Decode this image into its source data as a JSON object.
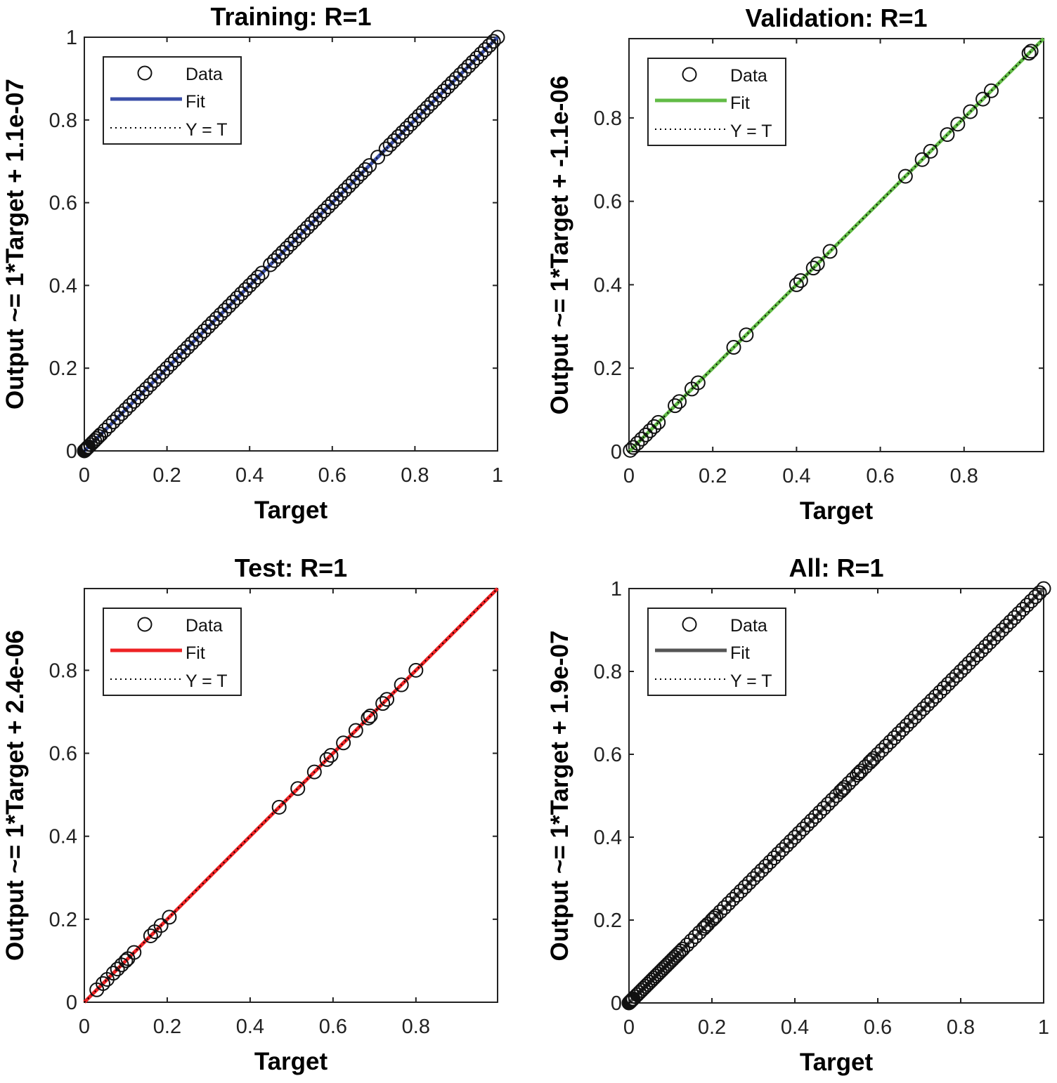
{
  "chart_data": [
    {
      "type": "scatter",
      "title": "Training: R=1",
      "xlabel": "Target",
      "ylabel": "Output ~= 1*Target + 1.1e-07",
      "fit": {
        "slope": 1,
        "intercept": 1.1e-07,
        "color": "#3a4fa8"
      },
      "xlim": [
        0,
        1
      ],
      "ylim": [
        0,
        1
      ],
      "ticks": [
        0,
        0.2,
        0.4,
        0.6,
        0.8,
        1
      ],
      "tick_labels": [
        "0",
        "0.2",
        "0.4",
        "0.6",
        "0.8",
        "1"
      ],
      "legend": {
        "position": "top-left",
        "entries": [
          "Data",
          "Fit",
          "Y = T"
        ]
      },
      "targets": [
        0,
        0.002,
        0.004,
        0.006,
        0.008,
        0.01,
        0.015,
        0.02,
        0.025,
        0.03,
        0.035,
        0.04,
        0.05,
        0.06,
        0.07,
        0.08,
        0.09,
        0.1,
        0.11,
        0.12,
        0.13,
        0.14,
        0.15,
        0.16,
        0.17,
        0.18,
        0.19,
        0.2,
        0.21,
        0.22,
        0.23,
        0.24,
        0.25,
        0.26,
        0.27,
        0.28,
        0.29,
        0.3,
        0.31,
        0.32,
        0.33,
        0.34,
        0.35,
        0.36,
        0.37,
        0.38,
        0.39,
        0.4,
        0.41,
        0.42,
        0.43,
        0.45,
        0.46,
        0.47,
        0.48,
        0.49,
        0.5,
        0.51,
        0.52,
        0.53,
        0.54,
        0.55,
        0.56,
        0.57,
        0.58,
        0.59,
        0.6,
        0.61,
        0.62,
        0.63,
        0.64,
        0.65,
        0.66,
        0.67,
        0.68,
        0.69,
        0.71,
        0.73,
        0.74,
        0.75,
        0.76,
        0.77,
        0.78,
        0.79,
        0.8,
        0.81,
        0.82,
        0.83,
        0.84,
        0.85,
        0.86,
        0.87,
        0.88,
        0.89,
        0.9,
        0.91,
        0.92,
        0.93,
        0.94,
        0.95,
        0.96,
        0.97,
        0.98,
        0.99,
        1
      ]
    },
    {
      "type": "scatter",
      "title": "Validation: R=1",
      "xlabel": "Target",
      "ylabel": "Output ~= 1*Target + -1.1e-06",
      "fit": {
        "slope": 1,
        "intercept": -1.1e-06,
        "color": "#62bb46"
      },
      "xlim": [
        0,
        0.99
      ],
      "ylim": [
        0,
        0.99
      ],
      "ticks": [
        0,
        0.2,
        0.4,
        0.6,
        0.8
      ],
      "tick_labels": [
        "0",
        "0.2",
        "0.4",
        "0.6",
        "0.8"
      ],
      "legend": {
        "position": "top-left",
        "entries": [
          "Data",
          "Fit",
          "Y = T"
        ]
      },
      "targets": [
        0.003,
        0.01,
        0.02,
        0.03,
        0.04,
        0.05,
        0.06,
        0.07,
        0.11,
        0.12,
        0.15,
        0.165,
        0.25,
        0.28,
        0.4,
        0.41,
        0.44,
        0.45,
        0.48,
        0.66,
        0.7,
        0.72,
        0.76,
        0.785,
        0.815,
        0.845,
        0.865,
        0.955,
        0.96
      ]
    },
    {
      "type": "scatter",
      "title": "Test: R=1",
      "xlabel": "Target",
      "ylabel": "Output ~= 1*Target + 2.4e-06",
      "fit": {
        "slope": 1,
        "intercept": 2.4e-06,
        "color": "#ed2224"
      },
      "xlim": [
        0,
        0.997
      ],
      "ylim": [
        0,
        0.997
      ],
      "ticks": [
        0,
        0.2,
        0.4,
        0.6,
        0.8
      ],
      "tick_labels": [
        "0",
        "0.2",
        "0.4",
        "0.6",
        "0.8"
      ],
      "legend": {
        "position": "top-left",
        "entries": [
          "Data",
          "Fit",
          "Y = T"
        ]
      },
      "targets": [
        0.03,
        0.045,
        0.055,
        0.07,
        0.08,
        0.09,
        0.1,
        0.105,
        0.12,
        0.16,
        0.17,
        0.185,
        0.205,
        0.47,
        0.515,
        0.555,
        0.585,
        0.595,
        0.625,
        0.655,
        0.685,
        0.69,
        0.72,
        0.73,
        0.765,
        0.8
      ]
    },
    {
      "type": "scatter",
      "title": "All: R=1",
      "xlabel": "Target",
      "ylabel": "Output ~= 1*Target + 1.9e-07",
      "fit": {
        "slope": 1,
        "intercept": 1.9e-07,
        "color": "#555555"
      },
      "xlim": [
        0,
        1
      ],
      "ylim": [
        0,
        1
      ],
      "ticks": [
        0,
        0.2,
        0.4,
        0.6,
        0.8,
        1
      ],
      "tick_labels": [
        "0",
        "0.2",
        "0.4",
        "0.6",
        "0.8",
        "1"
      ],
      "legend": {
        "position": "top-left",
        "entries": [
          "Data",
          "Fit",
          "Y = T"
        ]
      },
      "targets": [
        0,
        0.002,
        0.004,
        0.006,
        0.008,
        0.01,
        0.015,
        0.02,
        0.025,
        0.03,
        0.035,
        0.04,
        0.045,
        0.05,
        0.055,
        0.06,
        0.065,
        0.07,
        0.075,
        0.08,
        0.085,
        0.09,
        0.095,
        0.1,
        0.105,
        0.11,
        0.115,
        0.12,
        0.125,
        0.13,
        0.14,
        0.15,
        0.16,
        0.17,
        0.18,
        0.185,
        0.19,
        0.2,
        0.205,
        0.21,
        0.22,
        0.23,
        0.24,
        0.25,
        0.26,
        0.27,
        0.28,
        0.29,
        0.3,
        0.31,
        0.32,
        0.33,
        0.34,
        0.35,
        0.36,
        0.37,
        0.38,
        0.39,
        0.4,
        0.41,
        0.42,
        0.43,
        0.44,
        0.45,
        0.46,
        0.47,
        0.48,
        0.49,
        0.5,
        0.51,
        0.515,
        0.52,
        0.53,
        0.54,
        0.55,
        0.555,
        0.56,
        0.57,
        0.58,
        0.585,
        0.59,
        0.6,
        0.61,
        0.62,
        0.63,
        0.64,
        0.65,
        0.66,
        0.67,
        0.68,
        0.69,
        0.7,
        0.71,
        0.72,
        0.73,
        0.74,
        0.75,
        0.76,
        0.77,
        0.78,
        0.79,
        0.8,
        0.81,
        0.82,
        0.83,
        0.84,
        0.85,
        0.86,
        0.87,
        0.88,
        0.89,
        0.9,
        0.91,
        0.92,
        0.93,
        0.94,
        0.95,
        0.96,
        0.97,
        0.98,
        0.99,
        1
      ]
    }
  ]
}
